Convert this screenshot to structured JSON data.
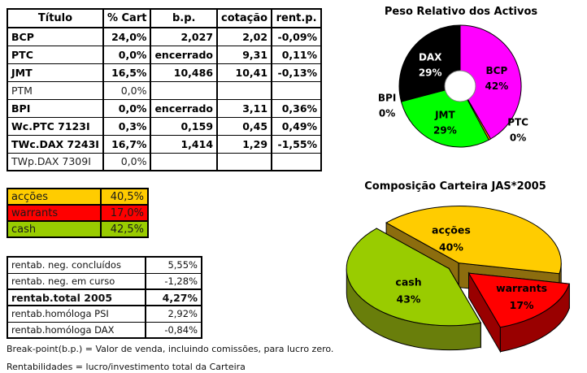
{
  "main_table": {
    "headers": [
      "Título",
      "% Cart",
      "b.p.",
      "cotação",
      "rent.p."
    ],
    "rows": [
      {
        "titulo": "BCP",
        "cart": "24,0%",
        "bp": "2,027",
        "cotacao": "2,02",
        "rent": "-0,09%"
      },
      {
        "titulo": "PTC",
        "cart": "0,0%",
        "bp": "encerrado",
        "cotacao": "9,31",
        "rent": "0,11%"
      },
      {
        "titulo": "JMT",
        "cart": "16,5%",
        "bp": "10,486",
        "cotacao": "10,41",
        "rent": "-0,13%"
      },
      {
        "titulo": "PTM",
        "cart": "0,0%",
        "bp": "",
        "cotacao": "",
        "rent": ""
      },
      {
        "titulo": "BPI",
        "cart": "0,0%",
        "bp": "encerrado",
        "cotacao": "3,11",
        "rent": "0,36%"
      },
      {
        "titulo": "Wc.PTC 7123I",
        "cart": "0,3%",
        "bp": "0,159",
        "cotacao": "0,45",
        "rent": "0,49%"
      },
      {
        "titulo": "TWc.DAX 7243I",
        "cart": "16,7%",
        "bp": "1,414",
        "cotacao": "1,29",
        "rent": "-1,55%"
      },
      {
        "titulo": "TWp.DAX 7309I",
        "cart": "0,0%",
        "bp": "",
        "cotacao": "",
        "rent": ""
      }
    ]
  },
  "allocation_table": {
    "rows": [
      {
        "label": "acções",
        "value": "40,5%",
        "color": "#FFCC00"
      },
      {
        "label": "warrants",
        "value": "17,0%",
        "color": "#FF0000"
      },
      {
        "label": "cash",
        "value": "42,5%",
        "color": "#99CC00"
      }
    ]
  },
  "rentab_table": {
    "rows": [
      {
        "label": "rentab. neg. concluídos",
        "value": "5,55%"
      },
      {
        "label": "rentab. neg. em curso",
        "value": "-1,28%"
      },
      {
        "label": "rentab.total 2005",
        "value": "4,27%"
      },
      {
        "label": "rentab.homóloga PSI",
        "value": "2,92%"
      },
      {
        "label": "rentab.homóloga DAX",
        "value": "-0,84%"
      }
    ]
  },
  "notes": [
    "Break-point(b.p.) = Valor de venda, incluindo comissões, para lucro zero.",
    "Rentabilidades = lucro/investimento total da Carteira"
  ],
  "status_colors": {
    "negative": "#FF0000",
    "positive": "#008000"
  },
  "chart_data": [
    {
      "type": "pie",
      "subtype": "donut",
      "title": "Peso Relativo dos Activos",
      "labels": [
        "BCP",
        "PTC",
        "JMT",
        "BPI",
        "DAX"
      ],
      "values": [
        41.7,
        0.5,
        28.7,
        0,
        29.1
      ],
      "display_values": [
        "42%",
        "0%",
        "29%",
        "0%",
        "29%"
      ],
      "colors": [
        "#FF00FF",
        "#FF9900",
        "#00FF00",
        null,
        "#000000"
      ],
      "label_colors": [
        "#000000",
        "#000000",
        "#000000",
        "#000000",
        "#FFFFFF"
      ],
      "start_angle": 0,
      "legend": "none"
    },
    {
      "type": "pie",
      "subtype": "3d-exploded",
      "title": "Composição Carteira JAS*2005",
      "labels": [
        "acções",
        "warrants",
        "cash"
      ],
      "values": [
        40.5,
        17.0,
        42.5
      ],
      "display_values": [
        "40%",
        "17%",
        "43%"
      ],
      "colors": [
        "#FFCC00",
        "#FF0000",
        "#99CC00"
      ],
      "side_colors": [
        "#8C6D0E",
        "#990000",
        "#697E0B"
      ],
      "start_angle": 315,
      "legend": "none"
    }
  ]
}
